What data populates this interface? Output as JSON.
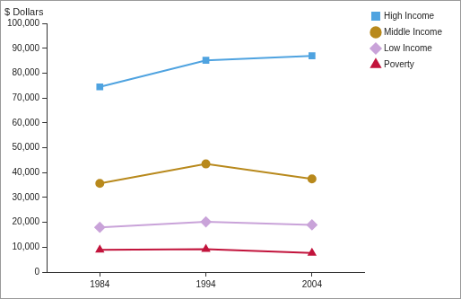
{
  "chart_data": {
    "type": "line",
    "ylabel": "$ Dollars",
    "categories": [
      "1984",
      "1994",
      "2004"
    ],
    "series": [
      {
        "name": "High Income",
        "color": "#4fa3e0",
        "marker": "square",
        "values": [
          74500,
          85200,
          87000
        ]
      },
      {
        "name": "Middle Income",
        "color": "#b8891c",
        "marker": "circle",
        "values": [
          35700,
          43500,
          37500
        ]
      },
      {
        "name": "Low Income",
        "color": "#c9a3d9",
        "marker": "diamond",
        "values": [
          18000,
          20200,
          19000
        ]
      },
      {
        "name": "Poverty",
        "color": "#c2143c",
        "marker": "triangle",
        "values": [
          8900,
          9200,
          7700
        ]
      }
    ],
    "ylim": [
      0,
      100000
    ],
    "yticks": [
      0,
      {
        "value": 10000,
        "label": "10,000"
      },
      {
        "value": 20000,
        "label": "20,000"
      },
      {
        "value": 30000,
        "label": "30,000"
      },
      {
        "value": 40000,
        "label": "40,000"
      },
      {
        "value": 50000,
        "label": "50,000"
      },
      {
        "value": 60000,
        "label": "60,000"
      },
      {
        "value": 70000,
        "label": "70,000"
      },
      {
        "value": 80000,
        "label": "80,000"
      },
      {
        "value": 90000,
        "label": "90,000"
      },
      {
        "value": 100000,
        "label": "100,000"
      }
    ],
    "grid": false,
    "legend": "right"
  }
}
